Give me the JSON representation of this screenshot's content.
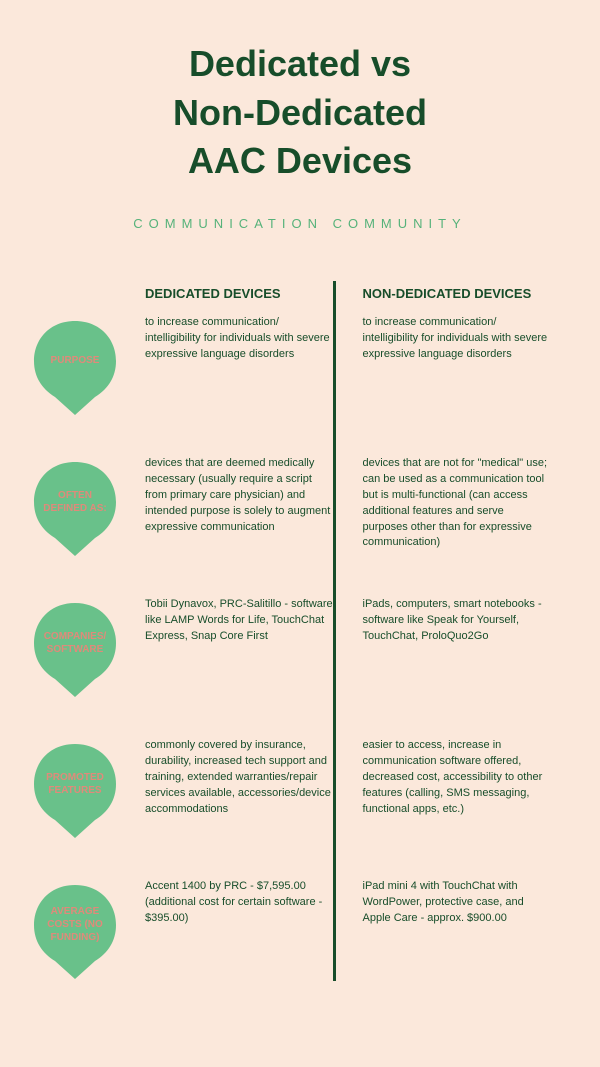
{
  "title": "Dedicated vs\nNon-Dedicated\nAAC Devices",
  "subtitle": "COMMUNICATION COMMUNITY",
  "headers": {
    "dedicated": "DEDICATED DEVICES",
    "non_dedicated": "NON-DEDICATED DEVICES"
  },
  "colors": {
    "background": "#fbe8db",
    "dark_green": "#174d2a",
    "light_green": "#69c18a",
    "drop_text": "#e08a7a"
  },
  "rows": [
    {
      "label": "PURPOSE",
      "dedicated": "to increase communication/ intelligibility for individuals with severe expressive language disorders",
      "non_dedicated": "to increase communication/ intelligibility for individuals with severe expressive language disorders"
    },
    {
      "label": "OFTEN DEFINED AS:",
      "dedicated": "devices that are deemed medically necessary (usually require a script from primary care physician) and intended purpose is solely to augment expressive communication",
      "non_dedicated": "devices that are not for \"medical\" use; can be used as a communication tool but is multi-functional (can access additional features and serve purposes other than for expressive communication)"
    },
    {
      "label": "COMPANIES/ SOFTWARE",
      "dedicated": "Tobii Dynavox, PRC-Salitillo - software like LAMP Words for Life, TouchChat Express, Snap Core First",
      "non_dedicated": "iPads, computers, smart notebooks - software like Speak for Yourself, TouchChat, ProloQuo2Go"
    },
    {
      "label": "PROMOTED FEATURES",
      "dedicated": "commonly covered by insurance, durability, increased tech support and training, extended warranties/repair services available, accessories/device accommodations",
      "non_dedicated": "easier to access, increase in communication software offered, decreased cost, accessibility to other features (calling, SMS messaging, functional apps, etc.)"
    },
    {
      "label": "AVERAGE COSTS (NO FUNDING)",
      "dedicated": "Accent 1400 by PRC - $7,595.00 (additional cost for certain software - $395.00)",
      "non_dedicated": "iPad mini 4 with TouchChat with WordPower, protective case, and Apple Care - approx. $900.00"
    }
  ]
}
